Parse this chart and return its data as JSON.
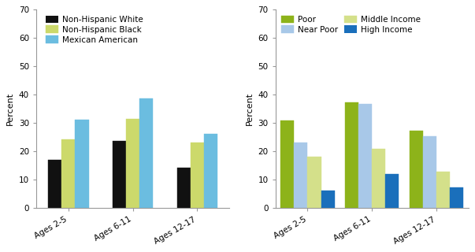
{
  "chart1": {
    "ylabel": "Percent",
    "ylim": [
      0,
      70
    ],
    "yticks": [
      0,
      10,
      20,
      30,
      40,
      50,
      60,
      70
    ],
    "categories": [
      "Ages 2-5",
      "Ages 6-11",
      "Ages 12-17"
    ],
    "series": [
      {
        "label": "Non-Hispanic White",
        "color": "#111111",
        "hatch": null,
        "values": [
          17.0,
          23.7,
          14.2
        ]
      },
      {
        "label": "Non-Hispanic Black",
        "color": "#ccd96b",
        "hatch": "....",
        "values": [
          24.4,
          31.6,
          23.1
        ]
      },
      {
        "label": "Mexican American",
        "color": "#6bbde0",
        "hatch": "....",
        "values": [
          31.2,
          38.8,
          26.2
        ]
      }
    ]
  },
  "chart2": {
    "ylabel": "Percent",
    "ylim": [
      0,
      70
    ],
    "yticks": [
      0,
      10,
      20,
      30,
      40,
      50,
      60,
      70
    ],
    "categories": [
      "Ages 2-5",
      "Ages 6-11",
      "Ages 12-17"
    ],
    "series": [
      {
        "label": "Poor",
        "color": "#8db31a",
        "hatch": "....",
        "values": [
          30.8,
          37.3,
          27.2
        ]
      },
      {
        "label": "Near Poor",
        "color": "#a8c8e8",
        "hatch": "....",
        "values": [
          23.2,
          36.9,
          25.4
        ]
      },
      {
        "label": "Middle Income",
        "color": "#d4e08a",
        "hatch": "....",
        "values": [
          18.2,
          21.0,
          13.0
        ]
      },
      {
        "label": "High Income",
        "color": "#1a6fbb",
        "hatch": null,
        "values": [
          6.3,
          12.1,
          7.2
        ]
      }
    ]
  },
  "bar_width": 0.21,
  "legend_fontsize": 7.5,
  "tick_fontsize": 7.5,
  "ylabel_fontsize": 8,
  "background_color": "#ffffff"
}
